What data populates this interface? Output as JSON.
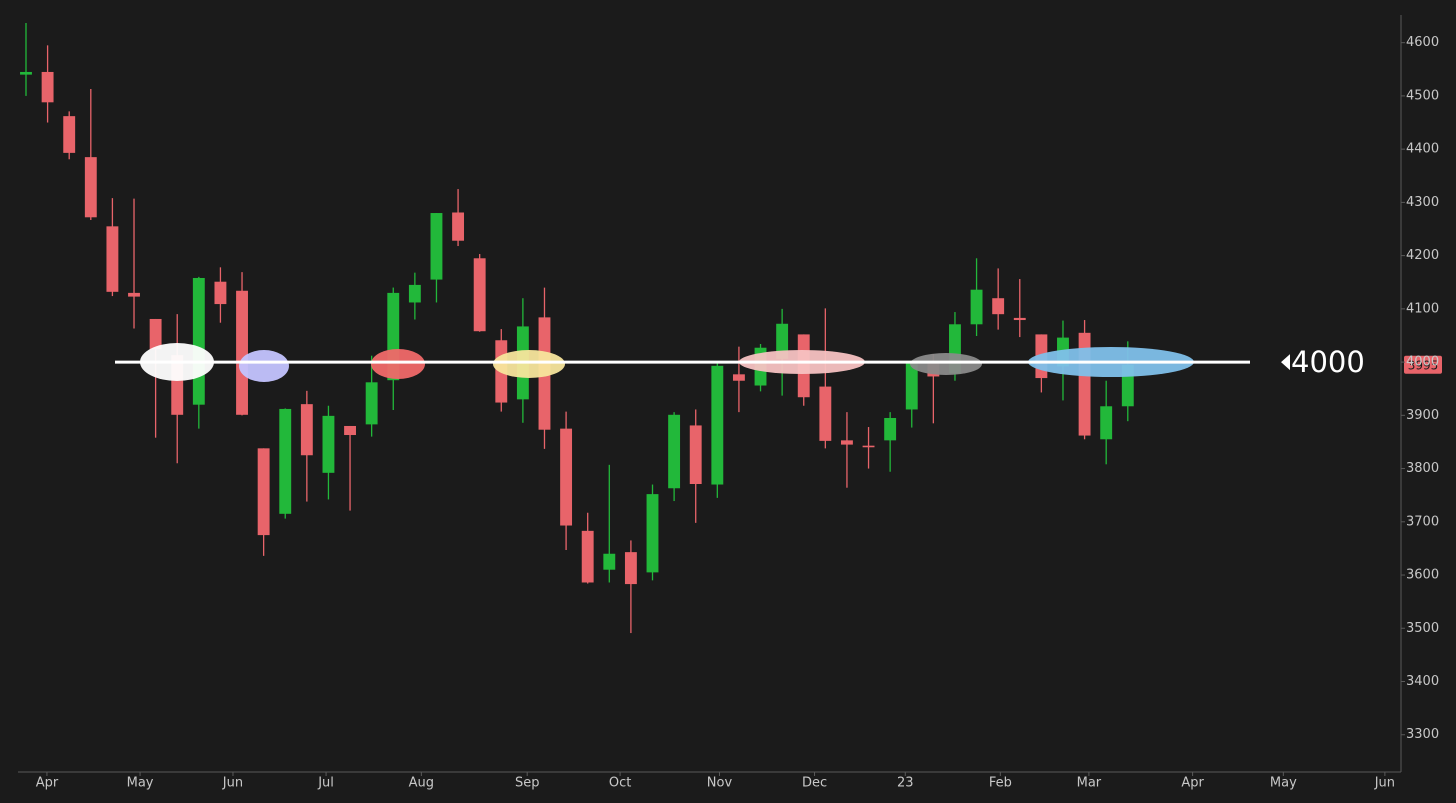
{
  "chart_data": {
    "type": "candlestick",
    "categories": [
      null,
      null,
      null,
      null,
      null,
      null,
      null,
      null,
      null,
      null,
      null,
      null,
      null,
      null,
      null,
      null,
      null,
      null,
      null,
      null,
      null,
      null,
      null,
      null,
      null,
      null,
      null,
      null,
      null,
      null,
      null,
      null,
      null,
      null,
      null,
      null,
      null,
      null,
      null,
      null,
      null,
      null,
      null,
      null,
      null,
      null,
      null,
      null,
      null,
      null,
      null,
      null
    ],
    "open": [
      4540,
      4545,
      4462,
      4385,
      4255,
      4130,
      4081,
      4013,
      3920,
      4151,
      4134,
      3838,
      3715,
      3921,
      3792,
      3880,
      3883,
      3966,
      4112,
      4155,
      4281,
      4195,
      4041,
      3930,
      4084,
      3875,
      3683,
      3610,
      3643,
      3605,
      3763,
      3881,
      3770,
      3977,
      3956,
      4006,
      4052,
      3954,
      3853,
      3843,
      3853,
      3911,
      3999,
      3979,
      4071,
      4120,
      4083,
      4052,
      3992,
      4055,
      3855,
      3917
    ],
    "high": [
      4637,
      4595,
      4471,
      4513,
      4308,
      4307,
      4081,
      4090,
      4160,
      4178,
      4169,
      3838,
      3913,
      3946,
      3918,
      3880,
      4012,
      4140,
      4168,
      4280,
      4325,
      4203,
      4062,
      4120,
      4140,
      3907,
      3717,
      3807,
      3665,
      3770,
      3906,
      3911,
      4000,
      4029,
      4034,
      4100,
      4052,
      4101,
      3906,
      3878,
      3906,
      4003,
      4015,
      4094,
      4195,
      4176,
      4156,
      4052,
      4078,
      4079,
      3965,
      4039
    ],
    "low": [
      4500,
      4450,
      4381,
      4267,
      4124,
      4063,
      3858,
      3810,
      3875,
      4074,
      3900,
      3636,
      3706,
      3738,
      3742,
      3721,
      3860,
      3910,
      4080,
      4112,
      4218,
      4057,
      3907,
      3886,
      3837,
      3647,
      3584,
      3586,
      3491,
      3590,
      3739,
      3698,
      3745,
      3906,
      3945,
      3937,
      3918,
      3838,
      3764,
      3800,
      3794,
      3877,
      3885,
      3965,
      4049,
      4061,
      4047,
      3943,
      3928,
      3855,
      3808,
      3889
    ],
    "close": [
      4545,
      4488,
      4393,
      4272,
      4132,
      4123,
      4024,
      3901,
      4158,
      4109,
      3901,
      3675,
      3912,
      3825,
      3899,
      3863,
      3962,
      4130,
      4145,
      4280,
      4228,
      4058,
      3924,
      4067,
      3873,
      3693,
      3586,
      3640,
      3583,
      3752,
      3901,
      3771,
      3993,
      3965,
      4027,
      4072,
      3934,
      3852,
      3845,
      3840,
      3895,
      3999,
      3973,
      4071,
      4136,
      4090,
      4079,
      3970,
      4046,
      3862,
      3917,
      3995
    ],
    "up_color": "#22b83a",
    "down_color": "#e8646a",
    "xlim": [
      -0.37,
      63.6
    ],
    "xticks": [
      {
        "value": 0.97,
        "label": "Apr"
      },
      {
        "value": 5.28,
        "label": "May"
      },
      {
        "value": 9.58,
        "label": "Jun"
      },
      {
        "value": 13.89,
        "label": "Jul"
      },
      {
        "value": 18.3,
        "label": "Aug"
      },
      {
        "value": 23.2,
        "label": "Sep"
      },
      {
        "value": 27.5,
        "label": "Oct"
      },
      {
        "value": 32.1,
        "label": "Nov"
      },
      {
        "value": 36.5,
        "label": "Dec"
      },
      {
        "value": 40.7,
        "label": "23"
      },
      {
        "value": 45.1,
        "label": "Feb"
      },
      {
        "value": 49.2,
        "label": "Mar"
      },
      {
        "value": 54.0,
        "label": "Apr"
      },
      {
        "value": 58.2,
        "label": "May"
      },
      {
        "value": 62.9,
        "label": "Jun"
      }
    ],
    "ylim": [
      3230,
      4652
    ],
    "yticks": [
      3300,
      3400,
      3500,
      3600,
      3700,
      3800,
      3900,
      4000,
      4100,
      4200,
      4300,
      4400,
      4500,
      4600
    ],
    "level": 4000
  }
}
